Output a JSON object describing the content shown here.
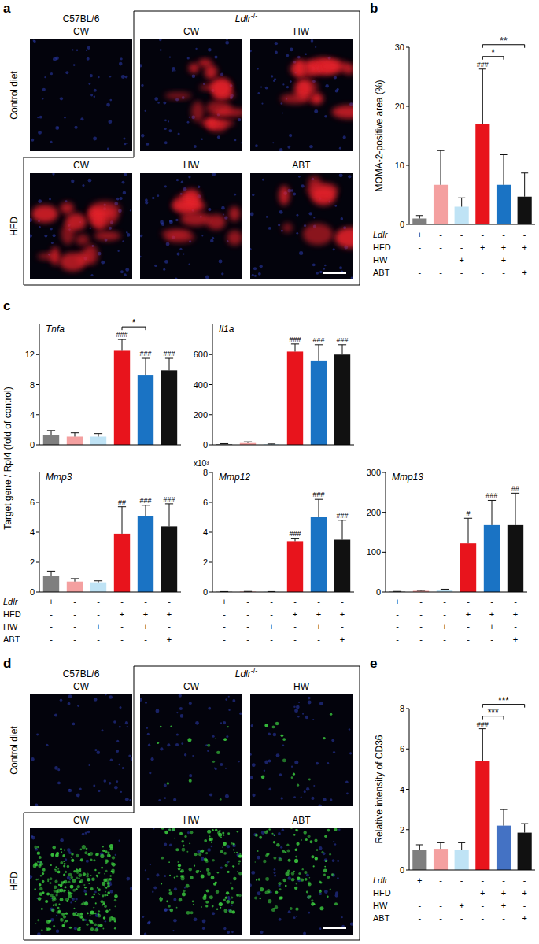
{
  "image_panels": [
    {
      "letter": "a",
      "top_left_label": "C57BL/6",
      "strain": {
        "name": "Ldlr",
        "sup": "-/-"
      },
      "rows": [
        {
          "label": "Control diet",
          "images": [
            "CW",
            "CW",
            "HW"
          ]
        },
        {
          "label": "HFD",
          "images": [
            "CW",
            "HW",
            "ABT"
          ]
        }
      ]
    },
    {
      "letter": "d",
      "top_left_label": "C57BL/6",
      "strain": {
        "name": "Ldlr",
        "sup": "-/-"
      },
      "rows": [
        {
          "label": "Control diet",
          "images": [
            "CW",
            "CW",
            "HW"
          ]
        },
        {
          "label": "HFD",
          "images": [
            "CW",
            "HW",
            "ABT"
          ]
        }
      ]
    }
  ],
  "chart_data": [
    {
      "type": "bar",
      "panel_letter": "b",
      "ylabel": "MOMA-2-positive area (%)",
      "categories": [
        null,
        null,
        null,
        null,
        null,
        null
      ],
      "ylim": [
        0,
        30
      ],
      "yticks": [
        0,
        10,
        20,
        30
      ],
      "series": [
        {
          "values": [
            1.0,
            6.7,
            3.0,
            17.0,
            6.7,
            4.7
          ],
          "errors": [
            0.5,
            5.8,
            1.5,
            9.3,
            5.1,
            4.0
          ],
          "colors": [
            "#7f7f7f",
            "#f4a0a0",
            "#bfe3f5",
            "#e8141c",
            "#1a73c4",
            "#111111"
          ],
          "sig_labels": [
            null,
            null,
            null,
            "###",
            null,
            null
          ]
        }
      ],
      "brackets": [
        {
          "from": 3,
          "to": 4,
          "label": "*"
        },
        {
          "from": 3,
          "to": 5,
          "label": "**"
        }
      ],
      "condition_table": {
        "rows": [
          {
            "label": "Ldlr",
            "signs": [
              "+",
              "-",
              "-",
              "-",
              "-",
              "-"
            ]
          },
          {
            "label": "HFD",
            "signs": [
              "-",
              "-",
              "-",
              "+",
              "+",
              "+"
            ]
          },
          {
            "label": "HW",
            "signs": [
              "-",
              "-",
              "+",
              "-",
              "+",
              "-"
            ]
          },
          {
            "label": "ABT",
            "signs": [
              "-",
              "-",
              "-",
              "-",
              "-",
              "+"
            ]
          }
        ]
      }
    },
    {
      "type": "bar",
      "panel_letter": "c",
      "title": "Tnfa",
      "ylabel": "Target gene / Rpl4 (fold of control)",
      "categories": [
        null,
        null,
        null,
        null,
        null,
        null
      ],
      "ylim": [
        0,
        16
      ],
      "yticks": [
        0,
        4,
        8,
        12
      ],
      "series": [
        {
          "values": [
            1.3,
            1.1,
            1.1,
            12.5,
            9.3,
            9.9
          ],
          "errors": [
            0.6,
            0.5,
            0.4,
            1.5,
            2.2,
            1.6
          ],
          "colors": [
            "#7f7f7f",
            "#f4a0a0",
            "#bfe3f5",
            "#e8141c",
            "#1a73c4",
            "#111111"
          ],
          "sig_labels": [
            null,
            null,
            null,
            "###",
            "###",
            "###"
          ]
        }
      ],
      "brackets": [
        {
          "from": 3,
          "to": 4,
          "label": "*"
        }
      ]
    },
    {
      "type": "bar",
      "title": "Il1a",
      "categories": [
        null,
        null,
        null,
        null,
        null,
        null
      ],
      "ylim": [
        0,
        800
      ],
      "yticks": [
        0,
        200,
        400,
        600
      ],
      "series": [
        {
          "values": [
            5,
            12,
            4,
            620,
            560,
            600
          ],
          "errors": [
            3,
            8,
            2,
            50,
            105,
            65
          ],
          "colors": [
            "#7f7f7f",
            "#f4a0a0",
            "#bfe3f5",
            "#e8141c",
            "#1a73c4",
            "#111111"
          ],
          "sig_labels": [
            null,
            null,
            null,
            "###",
            "###",
            "###"
          ]
        }
      ]
    },
    {
      "type": "bar",
      "title": "Mmp3",
      "categories": [
        null,
        null,
        null,
        null,
        null,
        null
      ],
      "ylim": [
        0,
        8
      ],
      "yticks": [
        0,
        2,
        4,
        6
      ],
      "series": [
        {
          "values": [
            1.1,
            0.7,
            0.65,
            3.9,
            5.1,
            4.4
          ],
          "errors": [
            0.3,
            0.2,
            0.1,
            1.8,
            0.7,
            1.5
          ],
          "colors": [
            "#7f7f7f",
            "#f4a0a0",
            "#bfe3f5",
            "#e8141c",
            "#1a73c4",
            "#111111"
          ],
          "sig_labels": [
            null,
            null,
            null,
            "##",
            "###",
            "###"
          ]
        }
      ],
      "condition_table": {
        "rows": [
          {
            "label": "Ldlr",
            "signs": [
              "+",
              "-",
              "-",
              "-",
              "-",
              "-"
            ]
          },
          {
            "label": "HFD",
            "signs": [
              "-",
              "-",
              "-",
              "+",
              "+",
              "+"
            ]
          },
          {
            "label": "HW",
            "signs": [
              "-",
              "-",
              "+",
              "-",
              "+",
              "-"
            ]
          },
          {
            "label": "ABT",
            "signs": [
              "-",
              "-",
              "-",
              "-",
              "-",
              "+"
            ]
          }
        ]
      }
    },
    {
      "type": "bar",
      "title": "Mmp12",
      "y_multiplier": "x10³",
      "categories": [
        null,
        null,
        null,
        null,
        null,
        null
      ],
      "ylim": [
        0,
        8
      ],
      "yticks": [
        0,
        2,
        4,
        6,
        8
      ],
      "series": [
        {
          "values": [
            0.02,
            0.03,
            0.02,
            3.4,
            5.0,
            3.5
          ],
          "errors": [
            0.01,
            0.01,
            0.01,
            0.2,
            1.2,
            1.3
          ],
          "colors": [
            "#7f7f7f",
            "#f4a0a0",
            "#bfe3f5",
            "#e8141c",
            "#1a73c4",
            "#111111"
          ],
          "sig_labels": [
            null,
            null,
            null,
            "###",
            "###",
            "###"
          ]
        }
      ],
      "condition_table": {
        "rows": [
          {
            "signs": [
              "+",
              "-",
              "-",
              "-",
              "-",
              "-"
            ]
          },
          {
            "signs": [
              "-",
              "-",
              "-",
              "+",
              "+",
              "+"
            ]
          },
          {
            "signs": [
              "-",
              "-",
              "+",
              "-",
              "+",
              "-"
            ]
          },
          {
            "signs": [
              "-",
              "-",
              "-",
              "-",
              "-",
              "+"
            ]
          }
        ]
      }
    },
    {
      "type": "bar",
      "title": "Mmp13",
      "categories": [
        null,
        null,
        null,
        null,
        null,
        null
      ],
      "ylim": [
        0,
        300
      ],
      "yticks": [
        0,
        100,
        200,
        300
      ],
      "series": [
        {
          "values": [
            1,
            3,
            4,
            122,
            168,
            168
          ],
          "errors": [
            0.5,
            1,
            3,
            63,
            62,
            80
          ],
          "colors": [
            "#7f7f7f",
            "#f4a0a0",
            "#bfe3f5",
            "#e8141c",
            "#1a73c4",
            "#111111"
          ],
          "sig_labels": [
            null,
            null,
            null,
            "#",
            "###",
            "##"
          ]
        }
      ],
      "condition_table": {
        "rows": [
          {
            "signs": [
              "+",
              "-",
              "-",
              "-",
              "-",
              "-"
            ]
          },
          {
            "signs": [
              "-",
              "-",
              "-",
              "+",
              "+",
              "+"
            ]
          },
          {
            "signs": [
              "-",
              "-",
              "+",
              "-",
              "+",
              "-"
            ]
          },
          {
            "signs": [
              "-",
              "-",
              "-",
              "-",
              "-",
              "+"
            ]
          }
        ]
      }
    },
    {
      "type": "bar",
      "panel_letter": "e",
      "ylabel": "Relative intensity of CD36",
      "categories": [
        null,
        null,
        null,
        null,
        null,
        null
      ],
      "ylim": [
        0,
        8
      ],
      "yticks": [
        0,
        2,
        4,
        6,
        8
      ],
      "series": [
        {
          "values": [
            1.0,
            1.05,
            1.0,
            5.4,
            2.2,
            1.85
          ],
          "errors": [
            0.25,
            0.3,
            0.35,
            1.6,
            0.8,
            0.45
          ],
          "colors": [
            "#7f7f7f",
            "#f4a0a0",
            "#bfe3f5",
            "#e8141c",
            "#4472c4",
            "#111111"
          ],
          "sig_labels": [
            null,
            null,
            null,
            "###",
            null,
            null
          ]
        }
      ],
      "brackets": [
        {
          "from": 3,
          "to": 4,
          "label": "***"
        },
        {
          "from": 3,
          "to": 5,
          "label": "***"
        }
      ],
      "condition_table": {
        "rows": [
          {
            "label": "Ldlr",
            "signs": [
              "+",
              "-",
              "-",
              "-",
              "-",
              "-"
            ]
          },
          {
            "label": "HFD",
            "signs": [
              "-",
              "-",
              "-",
              "+",
              "+",
              "+"
            ]
          },
          {
            "label": "HW",
            "signs": [
              "-",
              "-",
              "+",
              "-",
              "+",
              "-"
            ]
          },
          {
            "label": "ABT",
            "signs": [
              "-",
              "-",
              "-",
              "-",
              "-",
              "+"
            ]
          }
        ]
      }
    }
  ]
}
